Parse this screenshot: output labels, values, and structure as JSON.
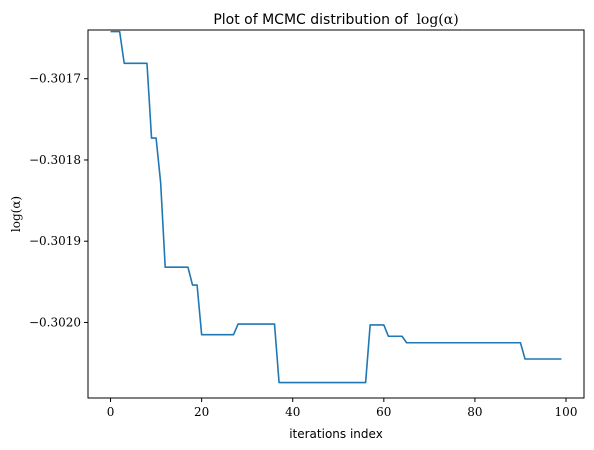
{
  "chart_data": {
    "type": "line",
    "title": "Plot of MCMC distribution of",
    "title_math": "log(α)",
    "xlabel": "iterations index",
    "ylabel": "log(α)",
    "xlim": [
      -4.95,
      103.95
    ],
    "ylim": [
      -0.302093,
      -0.30164
    ],
    "x_ticks": [
      0,
      20,
      40,
      60,
      80,
      100
    ],
    "x_tick_labels": [
      "0",
      "20",
      "40",
      "60",
      "80",
      "100"
    ],
    "y_ticks": [
      -0.3017,
      -0.3018,
      -0.3019,
      -0.302
    ],
    "y_tick_labels": [
      "−0.3017",
      "−0.3018",
      "−0.3019",
      "−0.3020"
    ],
    "grid": false,
    "series": [
      {
        "color": "#1f77b4",
        "x": [
          0,
          1,
          2,
          3,
          4,
          5,
          6,
          7,
          8,
          9,
          10,
          11,
          12,
          13,
          14,
          15,
          16,
          17,
          18,
          19,
          20,
          21,
          22,
          23,
          24,
          25,
          26,
          27,
          28,
          29,
          30,
          31,
          32,
          33,
          34,
          35,
          36,
          37,
          38,
          39,
          40,
          41,
          42,
          43,
          44,
          45,
          46,
          47,
          48,
          49,
          50,
          51,
          52,
          53,
          54,
          55,
          56,
          57,
          58,
          59,
          60,
          61,
          62,
          63,
          64,
          65,
          66,
          67,
          68,
          69,
          70,
          71,
          72,
          73,
          74,
          75,
          76,
          77,
          78,
          79,
          80,
          81,
          82,
          83,
          84,
          85,
          86,
          87,
          88,
          89,
          90,
          91,
          92,
          93,
          94,
          95,
          96,
          97,
          98,
          99
        ],
        "y": [
          -0.301642,
          -0.301642,
          -0.301642,
          -0.301681,
          -0.301681,
          -0.301681,
          -0.301681,
          -0.301681,
          -0.301681,
          -0.301773,
          -0.301773,
          -0.301828,
          -0.301932,
          -0.301932,
          -0.301932,
          -0.301932,
          -0.301932,
          -0.301932,
          -0.301954,
          -0.301954,
          -0.302015,
          -0.302015,
          -0.302015,
          -0.302015,
          -0.302015,
          -0.302015,
          -0.302015,
          -0.302015,
          -0.302002,
          -0.302002,
          -0.302002,
          -0.302002,
          -0.302002,
          -0.302002,
          -0.302002,
          -0.302002,
          -0.302002,
          -0.302074,
          -0.302074,
          -0.302074,
          -0.302074,
          -0.302074,
          -0.302074,
          -0.302074,
          -0.302074,
          -0.302074,
          -0.302074,
          -0.302074,
          -0.302074,
          -0.302074,
          -0.302074,
          -0.302074,
          -0.302074,
          -0.302074,
          -0.302074,
          -0.302074,
          -0.302074,
          -0.302003,
          -0.302003,
          -0.302003,
          -0.302003,
          -0.302017,
          -0.302017,
          -0.302017,
          -0.302017,
          -0.302025,
          -0.302025,
          -0.302025,
          -0.302025,
          -0.302025,
          -0.302025,
          -0.302025,
          -0.302025,
          -0.302025,
          -0.302025,
          -0.302025,
          -0.302025,
          -0.302025,
          -0.302025,
          -0.302025,
          -0.302025,
          -0.302025,
          -0.302025,
          -0.302025,
          -0.302025,
          -0.302025,
          -0.302025,
          -0.302025,
          -0.302025,
          -0.302025,
          -0.302025,
          -0.302045,
          -0.302045,
          -0.302045,
          -0.302045,
          -0.302045,
          -0.302045,
          -0.302045,
          -0.302045,
          -0.302045
        ]
      }
    ]
  }
}
